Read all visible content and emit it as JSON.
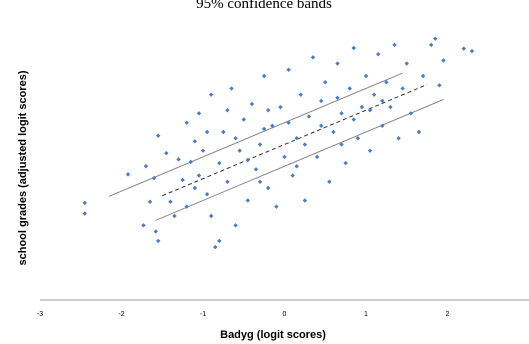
{
  "chart_data": {
    "type": "scatter",
    "title": "95% confidence bands",
    "xlabel": "Badyg (logit scores)",
    "ylabel": "school grades (adjusted logit scores)",
    "xlim": [
      -3,
      3
    ],
    "ylim": [
      -2.5,
      2.0
    ],
    "xticks": [
      -3,
      -2,
      -1,
      0,
      1,
      2
    ],
    "grid": false,
    "legend": "none",
    "marker_color": "#4a7cc0",
    "line_color": "#888888",
    "fit_line": {
      "slope": 0.55,
      "intercept": 0.0,
      "x_range": [
        -1.5,
        1.75
      ],
      "style": "dashed"
    },
    "band_upper": {
      "slope": 0.55,
      "intercept": 0.35,
      "x_range": [
        -2.15,
        1.45
      ]
    },
    "band_lower": {
      "slope": 0.55,
      "intercept": -0.35,
      "x_range": [
        -1.58,
        1.95
      ]
    },
    "points": [
      [
        -2.45,
        -0.94
      ],
      [
        -2.45,
        -1.11
      ],
      [
        -1.92,
        -0.48
      ],
      [
        -1.73,
        -1.3
      ],
      [
        -1.58,
        -1.4
      ],
      [
        -1.55,
        -1.55
      ],
      [
        -1.65,
        -0.92
      ],
      [
        -1.7,
        -0.35
      ],
      [
        -1.6,
        -0.54
      ],
      [
        -1.55,
        0.14
      ],
      [
        -1.45,
        -0.14
      ],
      [
        -1.4,
        -0.92
      ],
      [
        -1.35,
        -1.15
      ],
      [
        -1.3,
        -0.24
      ],
      [
        -1.25,
        -0.57
      ],
      [
        -1.2,
        -1.0
      ],
      [
        -1.2,
        0.35
      ],
      [
        -1.15,
        -0.28
      ],
      [
        -1.1,
        -0.7
      ],
      [
        -1.05,
        -0.5
      ],
      [
        -1.05,
        0.5
      ],
      [
        -1.0,
        -0.1
      ],
      [
        -0.95,
        -0.8
      ],
      [
        -0.9,
        0.8
      ],
      [
        -0.85,
        -1.65
      ],
      [
        -0.8,
        -1.55
      ],
      [
        -0.9,
        -1.15
      ],
      [
        -0.8,
        -0.3
      ],
      [
        -0.75,
        0.2
      ],
      [
        -0.7,
        -0.6
      ],
      [
        -0.65,
        0.9
      ],
      [
        -0.6,
        -1.3
      ],
      [
        -0.55,
        -0.1
      ],
      [
        -0.5,
        0.4
      ],
      [
        -0.45,
        -0.9
      ],
      [
        -0.4,
        0.65
      ],
      [
        -0.35,
        -0.4
      ],
      [
        -0.3,
        0.0
      ],
      [
        -0.25,
        1.1
      ],
      [
        -0.2,
        -0.7
      ],
      [
        -0.15,
        0.3
      ],
      [
        -0.1,
        -1.0
      ],
      [
        -0.05,
        0.6
      ],
      [
        0.0,
        -0.2
      ],
      [
        0.05,
        1.2
      ],
      [
        0.1,
        -0.5
      ],
      [
        0.15,
        0.1
      ],
      [
        0.2,
        0.8
      ],
      [
        0.25,
        -0.9
      ],
      [
        0.3,
        0.45
      ],
      [
        0.35,
        1.4
      ],
      [
        0.4,
        -0.2
      ],
      [
        0.45,
        0.7
      ],
      [
        0.5,
        1.0
      ],
      [
        0.55,
        -0.6
      ],
      [
        0.6,
        0.2
      ],
      [
        0.65,
        1.3
      ],
      [
        0.7,
        0.5
      ],
      [
        0.75,
        -0.3
      ],
      [
        0.8,
        0.9
      ],
      [
        0.85,
        1.55
      ],
      [
        0.9,
        0.1
      ],
      [
        0.95,
        0.6
      ],
      [
        1.0,
        1.1
      ],
      [
        1.05,
        -0.1
      ],
      [
        1.1,
        0.8
      ],
      [
        1.15,
        1.45
      ],
      [
        1.2,
        0.3
      ],
      [
        1.25,
        1.0
      ],
      [
        1.3,
        0.6
      ],
      [
        1.35,
        1.6
      ],
      [
        1.4,
        0.1
      ],
      [
        1.45,
        0.9
      ],
      [
        1.5,
        1.3
      ],
      [
        1.55,
        0.5
      ],
      [
        1.65,
        0.2
      ],
      [
        1.7,
        1.1
      ],
      [
        1.8,
        1.6
      ],
      [
        1.85,
        1.7
      ],
      [
        1.9,
        0.95
      ],
      [
        1.95,
        1.35
      ],
      [
        2.2,
        1.54
      ],
      [
        2.3,
        1.5
      ],
      [
        -0.95,
        0.2
      ],
      [
        -0.7,
        0.55
      ],
      [
        -0.45,
        -0.25
      ],
      [
        -0.25,
        0.25
      ],
      [
        0.05,
        0.35
      ],
      [
        0.25,
        0.0
      ],
      [
        0.45,
        0.3
      ],
      [
        0.65,
        0.75
      ],
      [
        0.85,
        0.4
      ],
      [
        1.05,
        0.55
      ],
      [
        -1.1,
        0.05
      ],
      [
        -0.6,
        0.1
      ],
      [
        -0.3,
        -0.6
      ],
      [
        0.15,
        -0.35
      ],
      [
        0.7,
        0.0
      ],
      [
        1.2,
        0.7
      ],
      [
        -0.2,
        0.55
      ]
    ]
  }
}
